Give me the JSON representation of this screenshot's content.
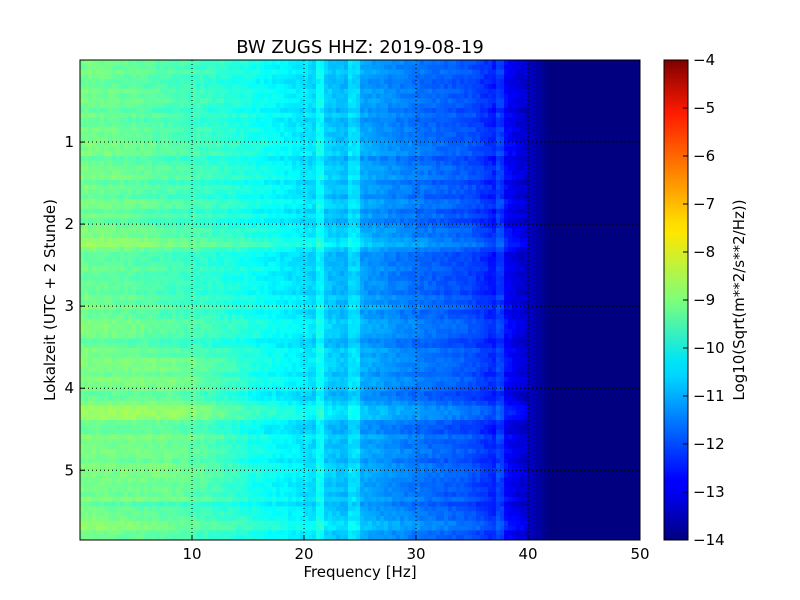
{
  "chart_data": {
    "type": "heatmap",
    "title": "BW ZUGS HHZ: 2019-08-19",
    "xlabel": "Frequency [Hz]",
    "ylabel": "Lokalzeit (UTC + 2 Stunde)",
    "xlim": [
      0,
      50
    ],
    "ylim": [
      5.85,
      0.0
    ],
    "x_ticks": [
      10,
      20,
      30,
      40,
      50
    ],
    "y_ticks": [
      1,
      2,
      3,
      4,
      5
    ],
    "y_inverted": true,
    "grid": true,
    "colormap": "jet",
    "colorbar": {
      "label": "Log10(Sqrt(m**2/s**2/Hz))",
      "min": -14,
      "max": -4,
      "ticks": [
        -4,
        -5,
        -6,
        -7,
        -8,
        -9,
        -10,
        -11,
        -12,
        -13,
        -14
      ]
    },
    "profile": {
      "frequency_hz": [
        0,
        5,
        10,
        15,
        20,
        25,
        30,
        35,
        37.5,
        40,
        42,
        45,
        50
      ],
      "log10_amplitude": [
        -9.1,
        -9.3,
        -9.6,
        -10.0,
        -10.5,
        -11.1,
        -11.6,
        -12.0,
        -12.6,
        -13.3,
        -14.0,
        -14.0,
        -14.0
      ]
    },
    "features": [
      {
        "type": "vertical_band",
        "frequency_hz": 21.5,
        "note": "elevated"
      },
      {
        "type": "vertical_band",
        "frequency_hz": 24.5,
        "note": "elevated"
      },
      {
        "type": "vertical_band",
        "frequency_hz": 37.5,
        "note": "edge"
      },
      {
        "type": "horizontal_band",
        "time_h": 2.2,
        "note": "elevated"
      },
      {
        "type": "horizontal_band",
        "time_h": 4.3,
        "note": "elevated low-frequency"
      },
      {
        "type": "horizontal_band",
        "time_h": 5.7,
        "note": "elevated"
      }
    ]
  }
}
